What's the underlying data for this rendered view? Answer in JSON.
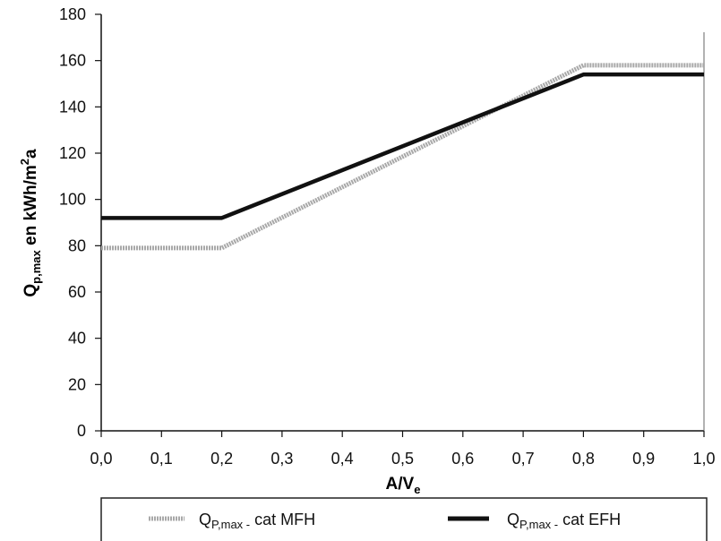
{
  "chart_data": {
    "type": "line",
    "xlabel": {
      "main": "A/V",
      "sub": "e"
    },
    "ylabel": {
      "main": "Q",
      "sub": "p,max",
      "rest": " en kWh/m",
      "sup": "2",
      "tail": "a"
    },
    "x_ticks": [
      "0,0",
      "0,1",
      "0,2",
      "0,3",
      "0,4",
      "0,5",
      "0,6",
      "0,7",
      "0,8",
      "0,9",
      "1,0"
    ],
    "y_ticks": [
      "0",
      "20",
      "40",
      "60",
      "80",
      "100",
      "120",
      "140",
      "160",
      "180"
    ],
    "xlim": [
      0,
      1
    ],
    "ylim": [
      0,
      180
    ],
    "grid": false,
    "legend_position": "bottom",
    "series": [
      {
        "name": "Q_P,max - cat MFH",
        "legend": {
          "main": "Q",
          "sub": "P,max -",
          "rest": " cat MFH"
        },
        "color": "#a8a8a8",
        "style": "thick-grey",
        "x": [
          0.0,
          0.2,
          0.8,
          1.0
        ],
        "y": [
          79,
          79,
          158,
          158
        ]
      },
      {
        "name": "Q_P,max - cat EFH",
        "legend": {
          "main": "Q",
          "sub": "P,max -",
          "rest": " cat EFH"
        },
        "color": "#111111",
        "style": "thick-black",
        "x": [
          0.0,
          0.2,
          0.8,
          1.0
        ],
        "y": [
          92,
          92,
          154,
          154
        ]
      }
    ]
  }
}
